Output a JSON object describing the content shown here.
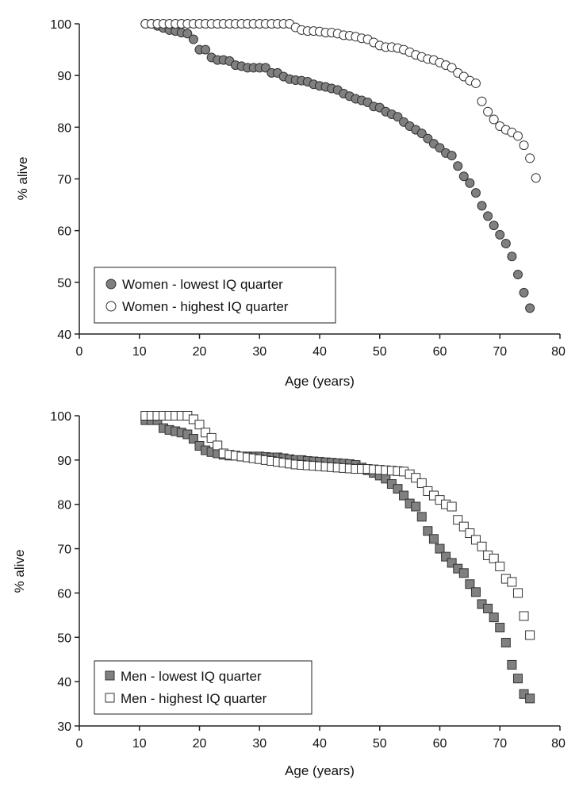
{
  "colors": {
    "filled": "#808080",
    "stroke": "#333333",
    "open": "#ffffff"
  },
  "chart_data": [
    {
      "type": "scatter",
      "marker": "circle",
      "xlabel": "Age (years)",
      "ylabel": "% alive",
      "xlim": [
        0,
        80
      ],
      "ylim": [
        40,
        100
      ],
      "xticks": [
        0,
        10,
        20,
        30,
        40,
        50,
        60,
        70,
        80
      ],
      "yticks": [
        40,
        50,
        60,
        70,
        80,
        90,
        100
      ],
      "legend_position": "bottom-left",
      "series": [
        {
          "name": "Women - lowest IQ quarter",
          "style": "filled",
          "points": [
            [
              11,
              100
            ],
            [
              12,
              100
            ],
            [
              13,
              99.6
            ],
            [
              14,
              99.2
            ],
            [
              15,
              98.8
            ],
            [
              16,
              98.6
            ],
            [
              17,
              98.3
            ],
            [
              18,
              98.1
            ],
            [
              19,
              97
            ],
            [
              20,
              95
            ],
            [
              21,
              95
            ],
            [
              22,
              93.5
            ],
            [
              23,
              93
            ],
            [
              24,
              93
            ],
            [
              25,
              92.8
            ],
            [
              26,
              92
            ],
            [
              27,
              91.8
            ],
            [
              28,
              91.5
            ],
            [
              29,
              91.5
            ],
            [
              30,
              91.5
            ],
            [
              31,
              91.5
            ],
            [
              32,
              90.5
            ],
            [
              33,
              90.5
            ],
            [
              34,
              89.8
            ],
            [
              35,
              89.3
            ],
            [
              36,
              89.1
            ],
            [
              37,
              89
            ],
            [
              38,
              88.8
            ],
            [
              39,
              88.3
            ],
            [
              40,
              88
            ],
            [
              41,
              87.8
            ],
            [
              42,
              87.5
            ],
            [
              43,
              87.2
            ],
            [
              44,
              86.5
            ],
            [
              45,
              86
            ],
            [
              46,
              85.5
            ],
            [
              47,
              85.2
            ],
            [
              48,
              84.8
            ],
            [
              49,
              84
            ],
            [
              50,
              83.8
            ],
            [
              51,
              83
            ],
            [
              52,
              82.5
            ],
            [
              53,
              82
            ],
            [
              54,
              81
            ],
            [
              55,
              80.2
            ],
            [
              56,
              79.5
            ],
            [
              57,
              78.8
            ],
            [
              58,
              77.8
            ],
            [
              59,
              76.8
            ],
            [
              60,
              76
            ],
            [
              61,
              75
            ],
            [
              62,
              74.5
            ],
            [
              63,
              72.5
            ],
            [
              64,
              70.5
            ],
            [
              65,
              69.2
            ],
            [
              66,
              67.3
            ],
            [
              67,
              64.8
            ],
            [
              68,
              62.8
            ],
            [
              69,
              61
            ],
            [
              70,
              59.2
            ],
            [
              71,
              57.5
            ],
            [
              72,
              55
            ],
            [
              73,
              51.5
            ],
            [
              74,
              48
            ],
            [
              75,
              45
            ]
          ]
        },
        {
          "name": "Women - highest IQ quarter",
          "style": "open",
          "points": [
            [
              11,
              100
            ],
            [
              12,
              100
            ],
            [
              13,
              100
            ],
            [
              14,
              100
            ],
            [
              15,
              100
            ],
            [
              16,
              100
            ],
            [
              17,
              100
            ],
            [
              18,
              100
            ],
            [
              19,
              100
            ],
            [
              20,
              100
            ],
            [
              21,
              100
            ],
            [
              22,
              100
            ],
            [
              23,
              100
            ],
            [
              24,
              100
            ],
            [
              25,
              100
            ],
            [
              26,
              100
            ],
            [
              27,
              100
            ],
            [
              28,
              100
            ],
            [
              29,
              100
            ],
            [
              30,
              100
            ],
            [
              31,
              100
            ],
            [
              32,
              100
            ],
            [
              33,
              100
            ],
            [
              34,
              100
            ],
            [
              35,
              100
            ],
            [
              36,
              99.3
            ],
            [
              37,
              98.8
            ],
            [
              38,
              98.6
            ],
            [
              39,
              98.6
            ],
            [
              40,
              98.5
            ],
            [
              41,
              98.3
            ],
            [
              42,
              98.3
            ],
            [
              43,
              98.1
            ],
            [
              44,
              97.8
            ],
            [
              45,
              97.7
            ],
            [
              46,
              97.5
            ],
            [
              47,
              97.2
            ],
            [
              48,
              97
            ],
            [
              49,
              96.4
            ],
            [
              50,
              95.8
            ],
            [
              51,
              95.5
            ],
            [
              52,
              95.5
            ],
            [
              53,
              95.3
            ],
            [
              54,
              95
            ],
            [
              55,
              94.5
            ],
            [
              56,
              94
            ],
            [
              57,
              93.6
            ],
            [
              58,
              93.2
            ],
            [
              59,
              93
            ],
            [
              60,
              92.5
            ],
            [
              61,
              92
            ],
            [
              62,
              91.5
            ],
            [
              63,
              90.5
            ],
            [
              64,
              89.8
            ],
            [
              65,
              89
            ],
            [
              66,
              88.5
            ],
            [
              67,
              85
            ],
            [
              68,
              83
            ],
            [
              69,
              81.5
            ],
            [
              70,
              80.2
            ],
            [
              71,
              79.5
            ],
            [
              72,
              79
            ],
            [
              73,
              78.3
            ],
            [
              74,
              76.5
            ],
            [
              75,
              74
            ],
            [
              76,
              70.2
            ]
          ]
        }
      ]
    },
    {
      "type": "scatter",
      "marker": "square",
      "xlabel": "Age (years)",
      "ylabel": "% alive",
      "xlim": [
        0,
        80
      ],
      "ylim": [
        30,
        100
      ],
      "xticks": [
        0,
        10,
        20,
        30,
        40,
        50,
        60,
        70,
        80
      ],
      "yticks": [
        30,
        40,
        50,
        60,
        70,
        80,
        90,
        100
      ],
      "legend_position": "bottom-left",
      "series": [
        {
          "name": "Men - lowest IQ quarter",
          "style": "filled",
          "points": [
            [
              11,
              99
            ],
            [
              12,
              99
            ],
            [
              13,
              99
            ],
            [
              14,
              97.2
            ],
            [
              15,
              96.8
            ],
            [
              16,
              96.5
            ],
            [
              17,
              96.2
            ],
            [
              18,
              95.8
            ],
            [
              19,
              94.8
            ],
            [
              20,
              93.2
            ],
            [
              21,
              92.2
            ],
            [
              22,
              91.8
            ],
            [
              23,
              91.5
            ],
            [
              24,
              91.2
            ],
            [
              25,
              91
            ],
            [
              26,
              91
            ],
            [
              27,
              90.8
            ],
            [
              28,
              90.8
            ],
            [
              29,
              90.8
            ],
            [
              30,
              90.8
            ],
            [
              31,
              90.7
            ],
            [
              32,
              90.6
            ],
            [
              33,
              90.6
            ],
            [
              34,
              90.4
            ],
            [
              35,
              90.2
            ],
            [
              36,
              90
            ],
            [
              37,
              90
            ],
            [
              38,
              89.8
            ],
            [
              39,
              89.7
            ],
            [
              40,
              89.6
            ],
            [
              41,
              89.5
            ],
            [
              42,
              89.4
            ],
            [
              43,
              89.3
            ],
            [
              44,
              89.2
            ],
            [
              45,
              89.1
            ],
            [
              46,
              88.9
            ],
            [
              47,
              88.3
            ],
            [
              48,
              87.7
            ],
            [
              49,
              87.1
            ],
            [
              50,
              86.5
            ],
            [
              51,
              85.8
            ],
            [
              52,
              84.6
            ],
            [
              53,
              83.5
            ],
            [
              54,
              82
            ],
            [
              55,
              80.2
            ],
            [
              56,
              79.5
            ],
            [
              57,
              77.2
            ],
            [
              58,
              74
            ],
            [
              59,
              72.2
            ],
            [
              60,
              70
            ],
            [
              61,
              68.2
            ],
            [
              62,
              66.8
            ],
            [
              63,
              65.5
            ],
            [
              64,
              64.5
            ],
            [
              65,
              62
            ],
            [
              66,
              60.2
            ],
            [
              67,
              57.5
            ],
            [
              68,
              56.5
            ],
            [
              69,
              54.5
            ],
            [
              70,
              52.2
            ],
            [
              71,
              48.8
            ],
            [
              72,
              43.8
            ],
            [
              73,
              40.7
            ],
            [
              74,
              37.2
            ],
            [
              75,
              36.2
            ]
          ]
        },
        {
          "name": "Men - highest IQ quarter",
          "style": "open",
          "points": [
            [
              11,
              100
            ],
            [
              12,
              100
            ],
            [
              13,
              100
            ],
            [
              14,
              100
            ],
            [
              15,
              100
            ],
            [
              16,
              100
            ],
            [
              17,
              100
            ],
            [
              18,
              100
            ],
            [
              19,
              99.2
            ],
            [
              20,
              98
            ],
            [
              21,
              96.2
            ],
            [
              22,
              95
            ],
            [
              23,
              93.3
            ],
            [
              24,
              91.5
            ],
            [
              25,
              91.2
            ],
            [
              26,
              91
            ],
            [
              27,
              90.8
            ],
            [
              28,
              90.6
            ],
            [
              29,
              90.4
            ],
            [
              30,
              90.2
            ],
            [
              31,
              90
            ],
            [
              32,
              89.8
            ],
            [
              33,
              89.6
            ],
            [
              34,
              89.4
            ],
            [
              35,
              89.2
            ],
            [
              36,
              89
            ],
            [
              37,
              88.9
            ],
            [
              38,
              88.8
            ],
            [
              39,
              88.7
            ],
            [
              40,
              88.6
            ],
            [
              41,
              88.5
            ],
            [
              42,
              88.4
            ],
            [
              43,
              88.3
            ],
            [
              44,
              88.2
            ],
            [
              45,
              88.1
            ],
            [
              46,
              88
            ],
            [
              47,
              88
            ],
            [
              48,
              88
            ],
            [
              49,
              87.9
            ],
            [
              50,
              87.8
            ],
            [
              51,
              87.7
            ],
            [
              52,
              87.6
            ],
            [
              53,
              87.5
            ],
            [
              54,
              87.4
            ],
            [
              55,
              86.8
            ],
            [
              56,
              86
            ],
            [
              57,
              84.8
            ],
            [
              58,
              83
            ],
            [
              59,
              82
            ],
            [
              60,
              81
            ],
            [
              61,
              80
            ],
            [
              62,
              79.5
            ],
            [
              63,
              76.5
            ],
            [
              64,
              75
            ],
            [
              65,
              73.5
            ],
            [
              66,
              72
            ],
            [
              67,
              70.5
            ],
            [
              68,
              68.5
            ],
            [
              69,
              67.8
            ],
            [
              70,
              66
            ],
            [
              71,
              63.2
            ],
            [
              72,
              62.5
            ],
            [
              73,
              60
            ],
            [
              74,
              54.8
            ],
            [
              75,
              50.5
            ]
          ]
        }
      ]
    }
  ]
}
